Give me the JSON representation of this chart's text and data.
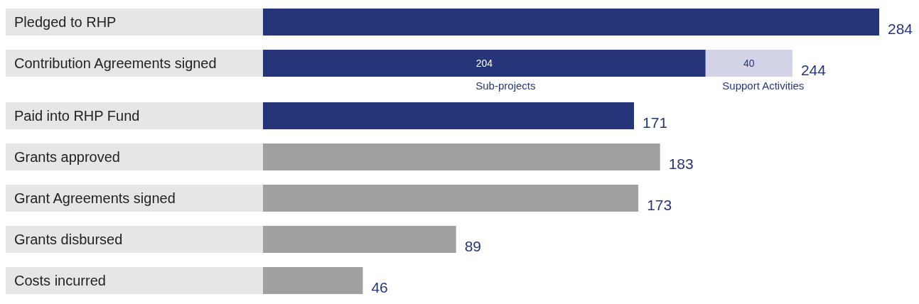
{
  "chart_data": {
    "type": "bar",
    "orientation": "horizontal",
    "stacked": true,
    "categories": [
      "Pledged to RHP",
      "Contribution Agreements signed",
      "Paid into RHP Fund",
      "Grants approved",
      "Grant Agreements signed",
      "Grants disbursed",
      "Costs incurred"
    ],
    "series": [
      {
        "name": "Sub-projects",
        "colors": [
          "#26357a",
          "#26357a",
          "#26357a",
          "#a0a0a0",
          "#a0a0a0",
          "#a0a0a0",
          "#a0a0a0"
        ],
        "values": [
          284,
          204,
          171,
          183,
          173,
          89,
          46
        ],
        "value_labels": [
          null,
          "204",
          null,
          null,
          null,
          null,
          null
        ]
      },
      {
        "name": "Support Activities",
        "color": "#d3d3e8",
        "values": [
          null,
          40,
          null,
          null,
          null,
          null,
          null
        ],
        "value_labels": [
          null,
          "40",
          null,
          null,
          null,
          null,
          null
        ]
      }
    ],
    "totals": [
      "284",
      "244",
      "171",
      "183",
      "173",
      "89",
      "46"
    ],
    "legend": false
  }
}
